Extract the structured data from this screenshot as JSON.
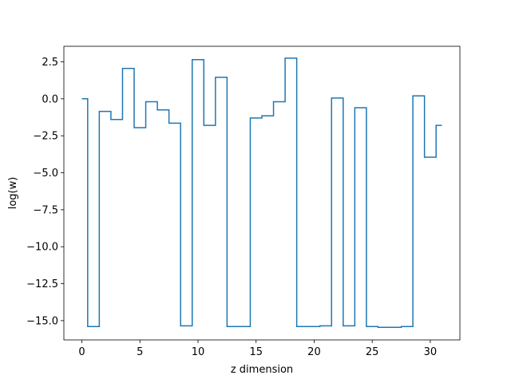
{
  "chart_data": {
    "type": "line",
    "drawstyle": "steps-mid",
    "title": "",
    "xlabel": "z dimension",
    "ylabel": "log(w)",
    "xlim": [
      -1.55,
      32.55
    ],
    "ylim": [
      -16.3,
      3.55
    ],
    "grid": false,
    "legend": "none",
    "line_color": "#1f77b4",
    "x_ticks": [
      {
        "value": 0,
        "label": "0"
      },
      {
        "value": 5,
        "label": "5"
      },
      {
        "value": 10,
        "label": "10"
      },
      {
        "value": 15,
        "label": "15"
      },
      {
        "value": 20,
        "label": "20"
      },
      {
        "value": 25,
        "label": "25"
      },
      {
        "value": 30,
        "label": "30"
      }
    ],
    "y_ticks": [
      {
        "value": 2.5,
        "label": "2.5"
      },
      {
        "value": 0.0,
        "label": "0.0"
      },
      {
        "value": -2.5,
        "label": "−2.5"
      },
      {
        "value": -5.0,
        "label": "−5.0"
      },
      {
        "value": -7.5,
        "label": "−7.5"
      },
      {
        "value": -10.0,
        "label": "−10.0"
      },
      {
        "value": -12.5,
        "label": "−12.5"
      },
      {
        "value": -15.0,
        "label": "−15.0"
      }
    ],
    "series": [
      {
        "x": [
          0,
          1,
          2,
          3,
          4,
          5,
          6,
          7,
          8,
          9,
          10,
          11,
          12,
          13,
          14,
          15,
          16,
          17,
          18,
          19,
          20,
          21,
          22,
          23,
          24,
          25,
          26,
          27,
          28,
          29,
          30,
          31
        ],
        "values": [
          0.0,
          -15.4,
          -0.85,
          -1.4,
          2.05,
          -1.95,
          -0.2,
          -0.75,
          -1.65,
          -15.35,
          2.65,
          -1.8,
          1.45,
          -15.4,
          -15.4,
          -1.3,
          -1.15,
          -0.2,
          2.75,
          -15.4,
          -15.4,
          -15.35,
          0.05,
          -15.35,
          -0.6,
          -15.4,
          -15.45,
          -15.45,
          -15.4,
          0.2,
          -3.95,
          -1.8
        ]
      }
    ]
  }
}
